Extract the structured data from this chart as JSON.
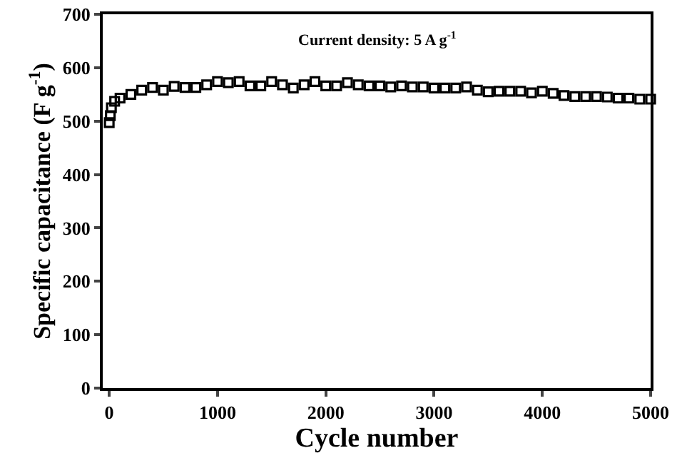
{
  "chart_data": {
    "type": "scatter",
    "xlabel": "Cycle number",
    "ylabel": "Specific capacitance (F g$^{-1}$)",
    "annotations": [
      "Current density: 5 A g$^{-1}$"
    ],
    "x": [
      0,
      10,
      20,
      50,
      100,
      200,
      300,
      400,
      500,
      600,
      700,
      800,
      900,
      1000,
      1100,
      1200,
      1300,
      1400,
      1500,
      1600,
      1700,
      1800,
      1900,
      2000,
      2100,
      2200,
      2300,
      2400,
      2500,
      2600,
      2700,
      2800,
      2900,
      3000,
      3100,
      3200,
      3300,
      3400,
      3500,
      3600,
      3700,
      3800,
      3900,
      4000,
      4100,
      4200,
      4300,
      4400,
      4500,
      4600,
      4700,
      4800,
      4900,
      5000
    ],
    "series": [
      {
        "color": "#000000",
        "values": [
          497,
          510,
          525,
          537,
          543,
          550,
          558,
          563,
          558,
          565,
          563,
          563,
          568,
          574,
          572,
          574,
          566,
          566,
          574,
          568,
          562,
          568,
          574,
          566,
          566,
          572,
          568,
          566,
          566,
          564,
          566,
          564,
          564,
          562,
          562,
          562,
          564,
          558,
          555,
          556,
          556,
          556,
          553,
          556,
          552,
          548,
          546,
          546,
          546,
          545,
          543,
          543,
          541,
          541
        ]
      }
    ],
    "xlim": [
      -60,
      5000
    ],
    "ylim": [
      0,
      700
    ],
    "xticks": [
      0,
      1000,
      2000,
      3000,
      4000,
      5000
    ],
    "yticks": [
      0,
      100,
      200,
      300,
      400,
      500,
      600,
      700
    ],
    "marker": "square",
    "grid": false
  }
}
